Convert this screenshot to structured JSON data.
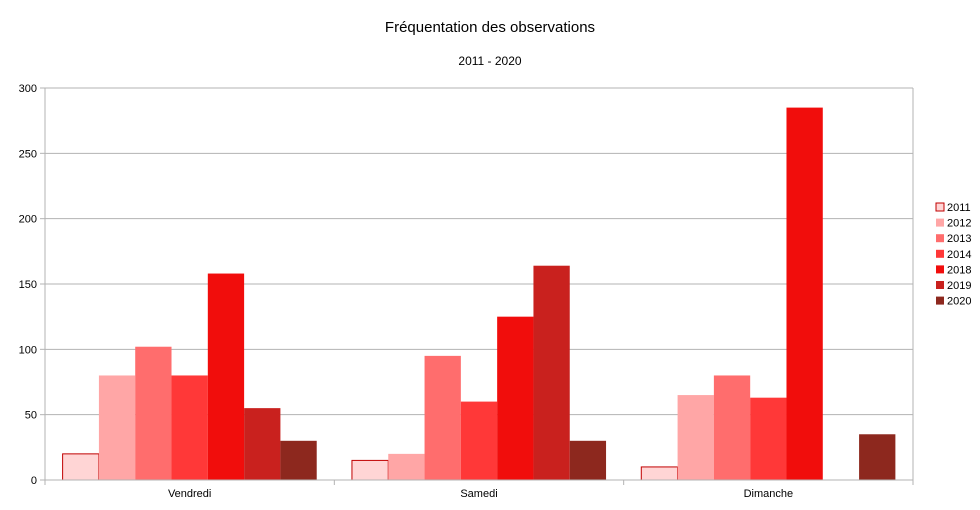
{
  "chart_data": {
    "type": "bar",
    "title": "Fréquentation des observations",
    "subtitle": "2011 - 2020",
    "xlabel": "",
    "ylabel": "",
    "ylim": [
      0,
      300
    ],
    "yticks": [
      0,
      50,
      100,
      150,
      200,
      250,
      300
    ],
    "grid": true,
    "legend_position": "right",
    "categories": [
      "Vendredi",
      "Samedi",
      "Dimanche"
    ],
    "series": [
      {
        "name": "2011",
        "color": "#ffd5d5",
        "border": "#c00000",
        "values": [
          20,
          15,
          10
        ]
      },
      {
        "name": "2012",
        "color": "#ffa6a6",
        "border": null,
        "values": [
          80,
          20,
          65
        ]
      },
      {
        "name": "2013",
        "color": "#ff6d6d",
        "border": null,
        "values": [
          102,
          95,
          80
        ]
      },
      {
        "name": "2014",
        "color": "#ff3838",
        "border": null,
        "values": [
          80,
          60,
          63
        ]
      },
      {
        "name": "2018",
        "color": "#f10d0c",
        "border": null,
        "values": [
          158,
          125,
          285
        ]
      },
      {
        "name": "2019",
        "color": "#c9211e",
        "border": null,
        "values": [
          55,
          164,
          0
        ]
      },
      {
        "name": "2020",
        "color": "#8d281e",
        "border": null,
        "values": [
          30,
          30,
          35
        ]
      }
    ]
  }
}
